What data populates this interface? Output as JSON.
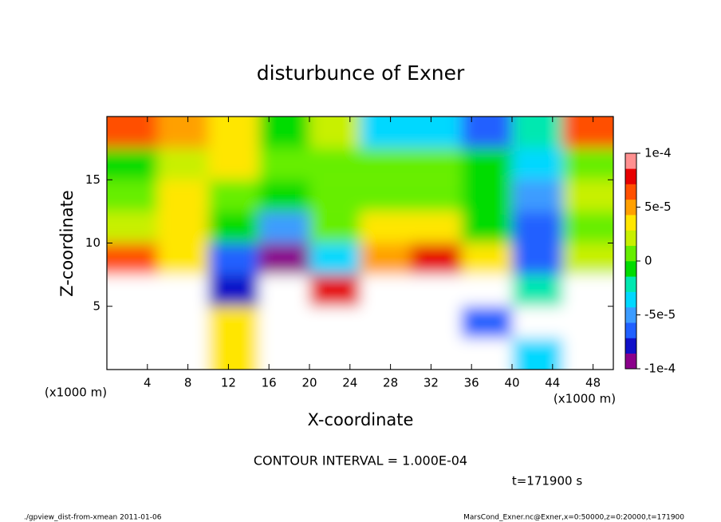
{
  "chart_data": {
    "type": "heatmap",
    "title": "disturbunce of Exner",
    "x_label": "X-coordinate",
    "y_label": "Z-coordinate",
    "x_unit": "(x1000 m)",
    "y_unit": "(x1000 m)",
    "x_bins": [
      0,
      5,
      10,
      15,
      20,
      25,
      30,
      35,
      40,
      45,
      50
    ],
    "y_bins": [
      0,
      2.5,
      5,
      7.5,
      10,
      12.5,
      15,
      17.5,
      20
    ],
    "values": [
      [
        -0.00015,
        -0.00015,
        3e-05,
        -0.00015,
        0.00015,
        0.00015,
        0.00015,
        0.00015,
        -4e-05,
        0.00015
      ],
      [
        -0.00015,
        -0.00015,
        4e-05,
        -0.00015,
        0.00015,
        0.00015,
        0.00015,
        -6e-05,
        0.00015,
        0.00015
      ],
      [
        0.00015,
        -0.00015,
        -8e-05,
        -0.00015,
        8e-05,
        0.00015,
        0.00015,
        0.00015,
        -2e-05,
        0.00015
      ],
      [
        6e-05,
        3e-05,
        -7e-05,
        -9e-05,
        -4e-05,
        5e-05,
        8e-05,
        4e-05,
        -7e-05,
        2e-05
      ],
      [
        2e-05,
        4e-05,
        -1e-05,
        -5e-05,
        1e-05,
        3e-05,
        3e-05,
        -1e-05,
        -7e-05,
        1e-05
      ],
      [
        0,
        3e-05,
        1e-05,
        -1e-05,
        1e-05,
        1e-05,
        1e-05,
        -1e-05,
        -5e-05,
        2e-05
      ],
      [
        -1e-05,
        2e-05,
        4e-05,
        1e-05,
        0,
        1e-05,
        1e-05,
        -1e-05,
        -3e-05,
        0
      ],
      [
        6e-05,
        5e-05,
        3e-05,
        -1e-05,
        2e-05,
        -3e-05,
        -4e-05,
        -6e-05,
        -2e-05,
        7e-05
      ]
    ],
    "xlim": [
      0,
      50
    ],
    "ylim": [
      0,
      20
    ],
    "xticks": [
      4,
      8,
      12,
      16,
      20,
      24,
      28,
      32,
      36,
      40,
      44,
      48
    ],
    "yticks": [
      5,
      10,
      15
    ],
    "colorbar_lim": [
      -0.0001,
      0.0001
    ],
    "colorbar_ticks": [
      {
        "value": 0.0001,
        "label": "1e-4"
      },
      {
        "value": 5e-05,
        "label": "5e-5"
      },
      0,
      {
        "value": -5e-05,
        "label": "-5e-5"
      },
      {
        "value": -0.0001,
        "label": "-1e-4"
      }
    ],
    "colors": [
      "#8b008b",
      "#1010c8",
      "#2060ff",
      "#3c9cff",
      "#00d8ff",
      "#00e8b0",
      "#00dc00",
      "#66ee00",
      "#c8f000",
      "#ffe600",
      "#ffa000",
      "#ff5000",
      "#e60000",
      "#ff9090"
    ],
    "out_of_range_color": "#ffffff",
    "contour_note": "CONTOUR INTERVAL = 1.000E-04",
    "time_note": "t=171900 s",
    "footer_left": "./gpview_dist-from-xmean  2011-01-06",
    "footer_right": "MarsCond_Exner.nc@Exner,x=0:50000,z=0:20000,t=171900"
  }
}
